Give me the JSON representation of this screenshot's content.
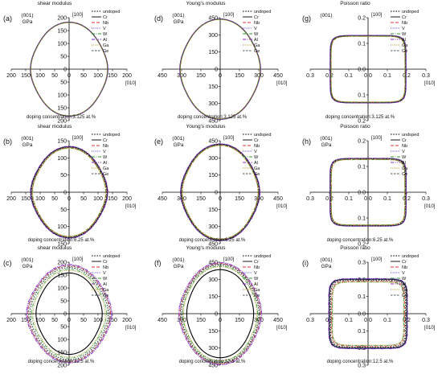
{
  "figure": {
    "series": [
      {
        "name": "undoped",
        "color": "#000000",
        "dash": "1.6,1.6"
      },
      {
        "name": "Cr",
        "color": "#000000",
        "dash": ""
      },
      {
        "name": "Nb",
        "color": "#e0303a",
        "dash": "4,2"
      },
      {
        "name": "V",
        "color": "#3a3ae6",
        "dash": "1,1.4"
      },
      {
        "name": "W",
        "color": "#2a9a2a",
        "dash": "4,1.5,1,1.5"
      },
      {
        "name": "Al",
        "color": "#8a2ad0",
        "dash": "4,1.5,1,1.5,1,1.5"
      },
      {
        "name": "Ga",
        "color": "#b08a00",
        "dash": "1,1.4"
      },
      {
        "name": "Ge",
        "color": "#555555",
        "dash": "2.5,1.5"
      }
    ]
  },
  "chart_data": [
    {
      "panel_label": "(a)",
      "type": "polar",
      "title": "shear modulus",
      "plane": "(001)",
      "unit": "GPa",
      "axis_x_label": "[010]",
      "axis_y_label": "[100]",
      "tick_labels_x": [
        "200",
        "150",
        "100",
        "50",
        "0",
        "50",
        "100",
        "150",
        "200"
      ],
      "tick_labels_y": [
        "200",
        "150",
        "100",
        "50",
        "0",
        "50",
        "100",
        "150",
        "200"
      ],
      "caption": "doping concentration:3.125 at.%",
      "r_max": 200,
      "r_axis": [
        128,
        175
      ],
      "spread": [
        0,
        0.5,
        -0.5,
        0.7,
        -0.7,
        1.0,
        -1.0,
        0.3
      ]
    },
    {
      "panel_label": "(b)",
      "type": "polar",
      "title": "shear modulus",
      "plane": "(001)",
      "unit": "GPa",
      "axis_x_label": "[010]",
      "axis_y_label": "[100]",
      "tick_labels_x": [
        "200",
        "150",
        "100",
        "50",
        "0",
        "50",
        "100",
        "150",
        "200"
      ],
      "tick_labels_y": [
        "150",
        "100",
        "50",
        "0",
        "50",
        "100",
        "150"
      ],
      "caption": "doping concentration:6.25 at.%",
      "r_max": 200,
      "r_axis": [
        125,
        168
      ],
      "spread": [
        0,
        2,
        -2,
        3,
        -3,
        4,
        -4,
        1
      ]
    },
    {
      "panel_label": "(c)",
      "type": "polar",
      "title": "shear modulus",
      "plane": "(001)",
      "unit": "GPa",
      "axis_x_label": "[010]",
      "axis_y_label": "[100]",
      "tick_labels_x": [
        "200",
        "150",
        "100",
        "50",
        "0",
        "50",
        "100",
        "150",
        "200"
      ],
      "tick_labels_y": [
        "200",
        "150",
        "100",
        "50",
        "0",
        "50",
        "100",
        "150",
        "200"
      ],
      "caption": "doping concentration:12.5 at.%",
      "r_max": 200,
      "r_axis": [
        130,
        172
      ],
      "spread": [
        0,
        -20,
        8,
        10,
        -6,
        12,
        -10,
        5
      ]
    },
    {
      "panel_label": "(d)",
      "type": "polar",
      "title": "Young's modulus",
      "plane": "(001)",
      "unit": "GPa",
      "axis_x_label": "[010]",
      "axis_y_label": "[100]",
      "tick_labels_x": [
        "450",
        "300",
        "150",
        "0",
        "150",
        "300",
        "450"
      ],
      "tick_labels_y": [
        "450",
        "300",
        "150",
        "0",
        "150",
        "300",
        "450"
      ],
      "caption": "doping concentration:3.125 at.%",
      "r_max": 450,
      "r_axis": [
        300,
        420
      ],
      "spread": [
        0,
        1,
        -1,
        2,
        -2,
        3,
        -3,
        1
      ]
    },
    {
      "panel_label": "(e)",
      "type": "polar",
      "title": "Young's modulus",
      "plane": "(001)",
      "unit": "GPa",
      "axis_x_label": "[010]",
      "axis_y_label": "[100]",
      "tick_labels_x": [
        "450",
        "300",
        "150",
        "0",
        "150",
        "300",
        "450"
      ],
      "tick_labels_y": [
        "450",
        "300",
        "150",
        "0",
        "150",
        "300",
        "450"
      ],
      "caption": "doping concentration:6.25 at.%",
      "r_max": 450,
      "r_axis": [
        290,
        400
      ],
      "spread": [
        0,
        4,
        -4,
        6,
        -6,
        8,
        -8,
        2
      ]
    },
    {
      "panel_label": "(f)",
      "type": "polar",
      "title": "Young's modulus",
      "plane": "(001)",
      "unit": "GPa",
      "axis_x_label": "[010]",
      "axis_y_label": "[100]",
      "tick_labels_x": [
        "450",
        "300",
        "150",
        "0",
        "150",
        "300",
        "450"
      ],
      "tick_labels_y": [
        "450",
        "300",
        "150",
        "0",
        "150",
        "300",
        "450"
      ],
      "caption": "doping concentration:12.5 at.%",
      "r_max": 450,
      "r_axis": [
        290,
        410
      ],
      "spread": [
        0,
        -40,
        12,
        18,
        -10,
        20,
        -15,
        8
      ]
    },
    {
      "panel_label": "(g)",
      "type": "polar",
      "title": "Poisson ratio",
      "plane": "(001)",
      "unit": "",
      "axis_x_label": "[010]",
      "axis_y_label": "[100]",
      "tick_labels_x": [
        "0.3",
        "0.2",
        "0.1",
        "0.0",
        "0.1",
        "0.2",
        "0.3"
      ],
      "tick_labels_y": [
        "0.2",
        "0.1",
        "0.0",
        "0.1",
        "0.2"
      ],
      "caption": "doping concentration:3.125 at.%",
      "r_max": 0.34,
      "r_axis": [
        0.22,
        0.22
      ],
      "diag": 0.285,
      "spread": [
        0,
        0.002,
        -0.002,
        0.003,
        -0.003,
        0.004,
        -0.004,
        0.001
      ]
    },
    {
      "panel_label": "(h)",
      "type": "polar",
      "title": "Poisson ratio",
      "plane": "(001)",
      "unit": "GPa",
      "axis_x_label": "[010]",
      "axis_y_label": "[100]",
      "tick_labels_x": [
        "0.3",
        "0.2",
        "0.1",
        "0.0",
        "0.1",
        "0.2",
        "0.3"
      ],
      "tick_labels_y": [
        "0.2",
        "0.1",
        "0.0",
        "0.1",
        "0.2"
      ],
      "caption": "doping concentration:6.25 at.%",
      "r_max": 0.34,
      "r_axis": [
        0.22,
        0.22
      ],
      "diag": 0.285,
      "spread": [
        0,
        0.003,
        -0.003,
        0.004,
        -0.004,
        0.005,
        -0.005,
        0.002
      ]
    },
    {
      "panel_label": "(i)",
      "type": "polar",
      "title": "Poisson ratio",
      "plane": "(001)",
      "unit": "GPa",
      "axis_x_label": "[010]",
      "axis_y_label": "[100]",
      "tick_labels_x": [
        "0.3",
        "0.2",
        "0.1",
        "0.0",
        "0.1",
        "0.2",
        "0.3"
      ],
      "tick_labels_y": [
        "0.3",
        "0.2",
        "0.1",
        "0.0",
        "0.1",
        "0.2",
        "0.3"
      ],
      "caption": "doping concentration:12.5 at.%",
      "r_max": 0.34,
      "r_axis": [
        0.22,
        0.22
      ],
      "diag": 0.285,
      "spread": [
        0,
        0.008,
        -0.006,
        0.01,
        -0.01,
        0.012,
        -0.012,
        0.004
      ]
    }
  ]
}
